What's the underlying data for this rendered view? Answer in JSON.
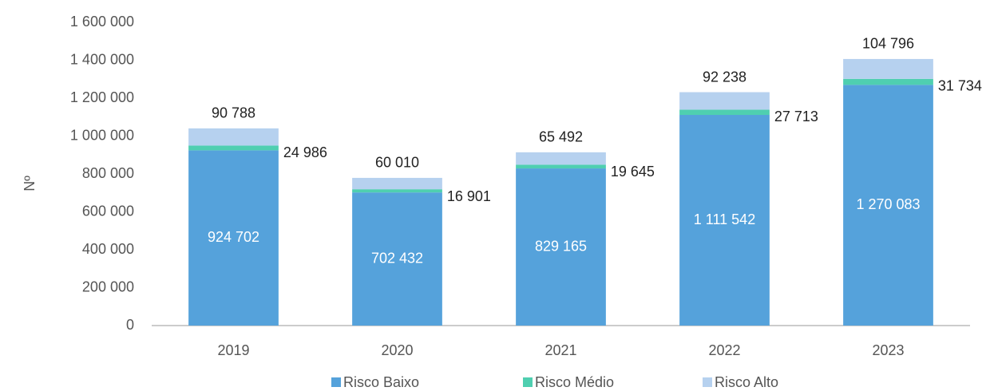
{
  "chart_data": {
    "type": "stacked_bar",
    "y_label": "Nº",
    "categories": [
      "2019",
      "2020",
      "2021",
      "2022",
      "2023"
    ],
    "series": [
      {
        "name": "Risco Baixo",
        "color": "#55a2db",
        "values": [
          924702,
          702432,
          829165,
          1111542,
          1270083
        ],
        "value_labels": [
          "924 702",
          "702 432",
          "829 165",
          "1 111 542",
          "1 270 083"
        ]
      },
      {
        "name": "Risco Médio",
        "color": "#4fcfb0",
        "values": [
          24986,
          16901,
          19645,
          27713,
          31734
        ],
        "value_labels": [
          "24 986",
          "16 901",
          "19 645",
          "27 713",
          "31 734"
        ]
      },
      {
        "name": "Risco Alto",
        "color": "#b6d1ef",
        "values": [
          90788,
          60010,
          65492,
          92238,
          104796
        ],
        "value_labels": [
          "90 788",
          "60 010",
          "65 492",
          "92 238",
          "104 796"
        ]
      }
    ],
    "ylim": [
      0,
      1600000
    ],
    "yticks": [
      0,
      {
        "value": 200000,
        "label": "200 000"
      },
      {
        "value": 400000,
        "label": "400 000"
      },
      {
        "value": 600000,
        "label": "600 000"
      },
      {
        "value": 800000,
        "label": "800 000"
      },
      {
        "value": 1000000,
        "label": "1 000 000"
      },
      {
        "value": 1200000,
        "label": "1 200 000"
      },
      {
        "value": 1400000,
        "label": "1 400 000"
      },
      {
        "value": 1600000,
        "label": "1 600 000"
      }
    ],
    "legend": "bottom"
  }
}
